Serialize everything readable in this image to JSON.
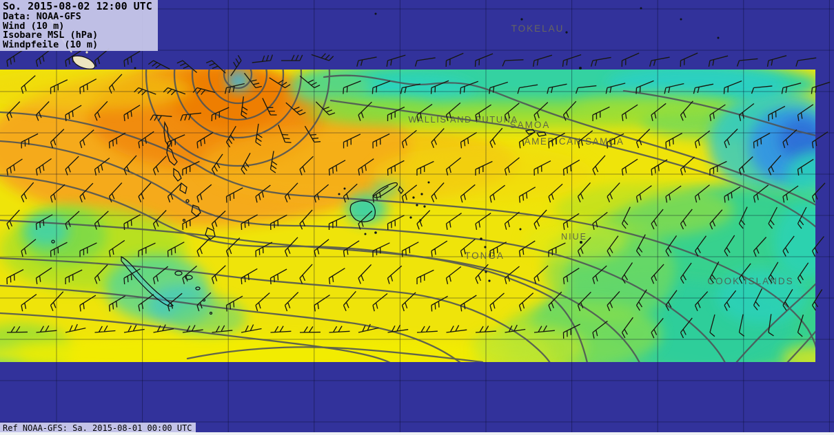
{
  "header": {
    "title_line": "So. 2015-08-02 12:00 UTC",
    "lines": [
      "Data: NOAA-GFS",
      "Wind (10 m)",
      "Isobare MSL (hPa)",
      "Windpfeile (10 m)"
    ]
  },
  "footer": {
    "ref_label": "Ref NOAA-GFS: Sa. 2015-08-01 00:00 UTC"
  },
  "map": {
    "place_labels": [
      {
        "text": "TOKELAU"
      },
      {
        "text": "WALLIS AND FUTUNA"
      },
      {
        "text": "SAMOA"
      },
      {
        "text": "AMERICAN SAMOA"
      },
      {
        "text": "NIUE"
      },
      {
        "text": "TONGA"
      },
      {
        "text": "COOK ISLANDS"
      }
    ],
    "overlays": [
      "Wind (10 m)",
      "Isobare MSL (hPa)",
      "Windpfeile (10 m)"
    ],
    "colors": {
      "background_navy": "#32329b",
      "panel_lavender": "#cbcbec",
      "wind_yellow": "#efe40a",
      "wind_orange": "#f5a51c",
      "wind_deep_orange": "#ee7d04",
      "wind_green": "#7edc52",
      "wind_teal": "#2fd096",
      "wind_cyan": "#2bd2c3",
      "wind_blue": "#2f6fd8",
      "isobar_gray": "#4e5356",
      "coast_black": "#0e1418",
      "label_olive": "#54584a",
      "grid_dark": "rgba(8,10,40,0.42)",
      "barb_black": "#18180e",
      "land_cream": "#ece5c0"
    }
  }
}
